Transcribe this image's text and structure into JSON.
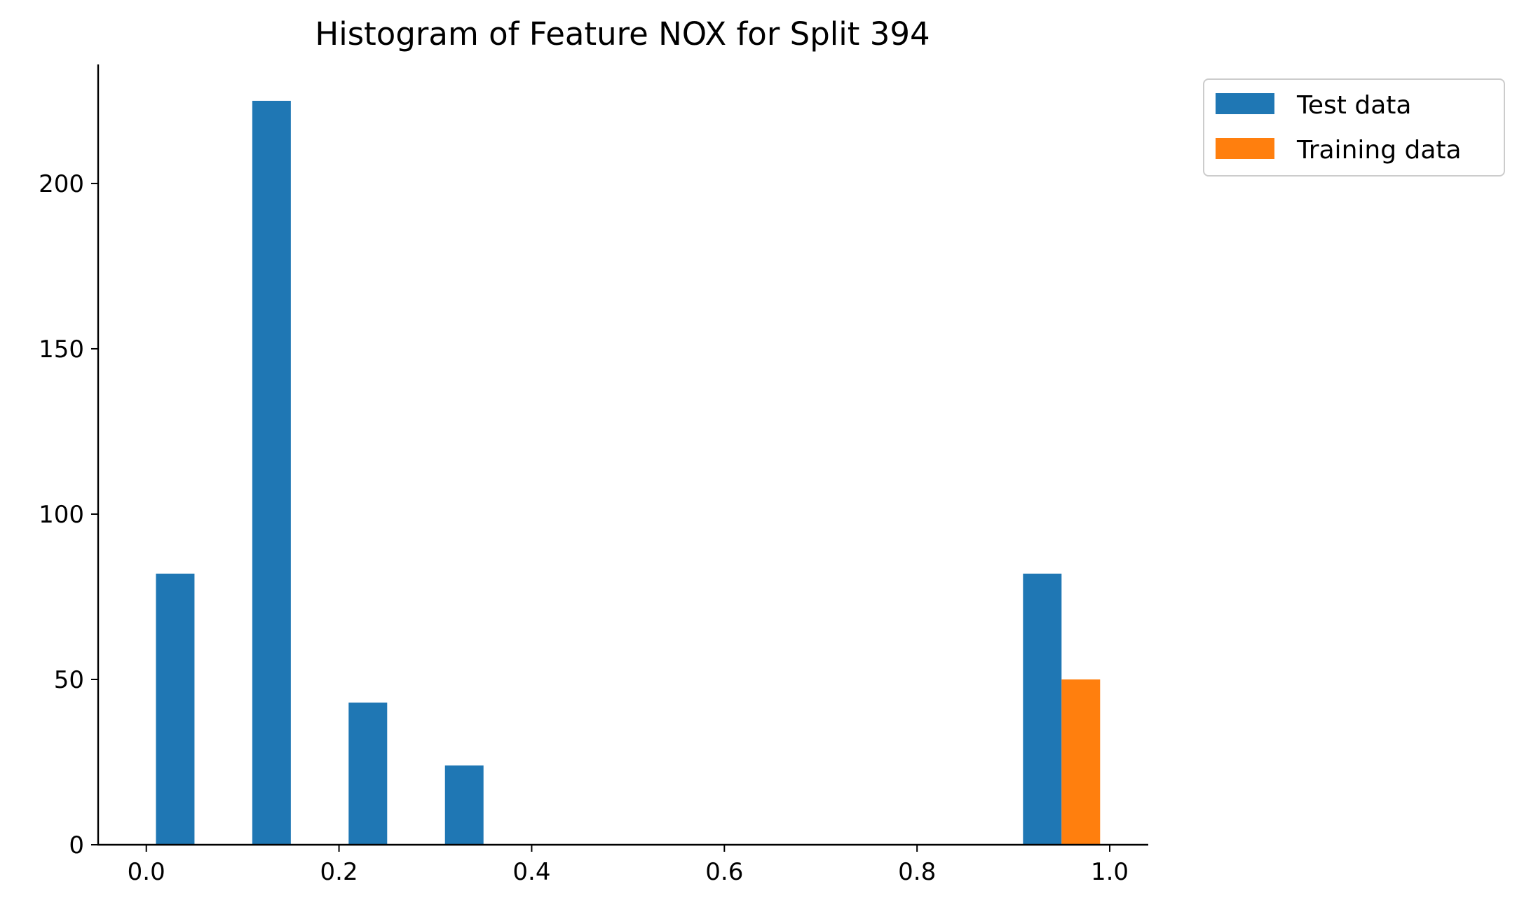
{
  "chart_data": {
    "type": "bar",
    "title": "Histogram of Feature NOX for Split 394",
    "xlabel": "",
    "ylabel": "",
    "xlim": [
      -0.05,
      1.04
    ],
    "ylim": [
      0,
      236
    ],
    "x_ticks": [
      {
        "value": 0.0,
        "label": "0.0"
      },
      {
        "value": 0.2,
        "label": "0.2"
      },
      {
        "value": 0.4,
        "label": "0.4"
      },
      {
        "value": 0.6,
        "label": "0.6"
      },
      {
        "value": 0.8,
        "label": "0.8"
      },
      {
        "value": 1.0,
        "label": "1.0"
      }
    ],
    "y_ticks": [
      {
        "value": 0,
        "label": "0"
      },
      {
        "value": 50,
        "label": "50"
      },
      {
        "value": 100,
        "label": "100"
      },
      {
        "value": 150,
        "label": "150"
      },
      {
        "value": 200,
        "label": "200"
      }
    ],
    "bins": [
      [
        0.01,
        0.05
      ],
      [
        0.05,
        0.09
      ],
      [
        0.11,
        0.15
      ],
      [
        0.15,
        0.19
      ],
      [
        0.21,
        0.25
      ],
      [
        0.25,
        0.29
      ],
      [
        0.31,
        0.35
      ],
      [
        0.35,
        0.39
      ],
      [
        0.91,
        0.95
      ],
      [
        0.95,
        0.99
      ]
    ],
    "series": [
      {
        "name": "Test data",
        "color": "#1f77b4",
        "bars": [
          {
            "x0": 0.01,
            "x1": 0.05,
            "count": 82
          },
          {
            "x0": 0.11,
            "x1": 0.15,
            "count": 225
          },
          {
            "x0": 0.21,
            "x1": 0.25,
            "count": 43
          },
          {
            "x0": 0.31,
            "x1": 0.35,
            "count": 24
          },
          {
            "x0": 0.91,
            "x1": 0.95,
            "count": 82
          }
        ]
      },
      {
        "name": "Training data",
        "color": "#ff7f0e",
        "bars": [
          {
            "x0": 0.95,
            "x1": 0.99,
            "count": 50
          }
        ]
      }
    ],
    "legend": {
      "position": "outside-upper-right"
    },
    "grid": false,
    "spines": [
      "left",
      "bottom"
    ]
  }
}
